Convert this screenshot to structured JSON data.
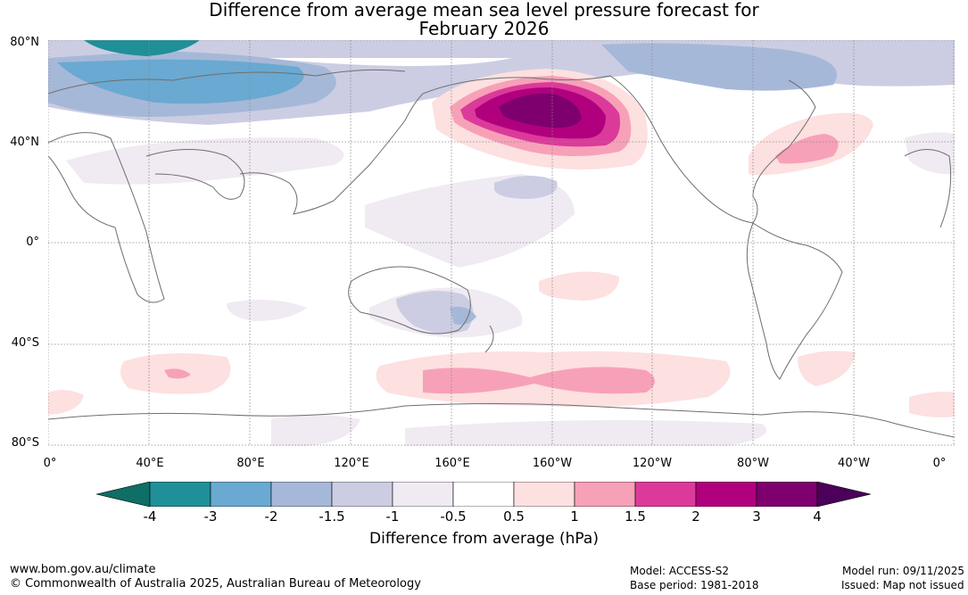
{
  "title_line1": "Difference from average mean sea level pressure forecast for",
  "title_line2": "February 2026",
  "lat_labels": [
    "80°N",
    "40°N",
    "0°",
    "40°S",
    "80°S"
  ],
  "lon_labels": [
    "0°",
    "40°E",
    "80°E",
    "120°E",
    "160°E",
    "160°W",
    "120°W",
    "80°W",
    "40°W",
    "0°"
  ],
  "colorbar": {
    "label": "Difference from average (hPa)",
    "ticks": [
      "-4",
      "-3",
      "-2",
      "-1.5",
      "-1",
      "-0.5",
      "0.5",
      "1",
      "1.5",
      "2",
      "3",
      "4"
    ],
    "colors": [
      "#0f6e66",
      "#1f8f98",
      "#6aa9d1",
      "#a6b8d8",
      "#cccde3",
      "#f0eaf2",
      "#ffffff",
      "#fde0e0",
      "#f7a1b8",
      "#dc3a9a",
      "#b0007e",
      "#7d006e",
      "#4b0059"
    ]
  },
  "footer": {
    "website": "www.bom.gov.au/climate",
    "copyright": "© Commonwealth of Australia 2025, Australian Bureau of Meteorology",
    "model": "Model: ACCESS-S2",
    "base_period": "Base period: 1981-2018",
    "model_run": "Model run: 09/11/2025",
    "issued": "Issued: Map not issued"
  }
}
